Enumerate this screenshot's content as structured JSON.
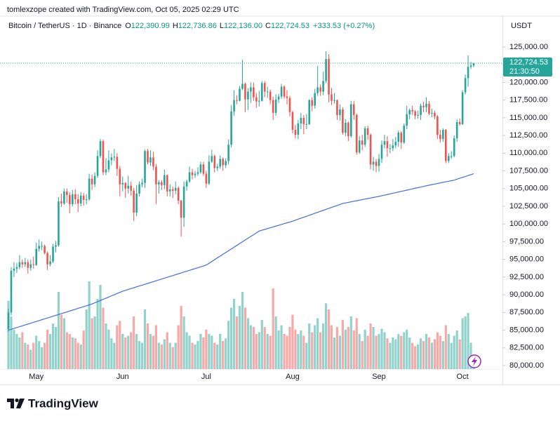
{
  "chart_data": {
    "type": "candlestick",
    "watermark": "tomlexzope created with TradingView.com, Oct 05, 2025 02:29 UTC",
    "symbol": "Bitcoin / TetherUS · 1D · Binance",
    "legend": {
      "o_key": "O",
      "o": "122,390.99",
      "h_key": "H",
      "h": "122,736.86",
      "l_key": "L",
      "l": "122,136.00",
      "c_key": "C",
      "c": "122,724.53",
      "change": "+333.53 (+0.27%)"
    },
    "currency": "USDT",
    "last_price_label": "122,724.53",
    "countdown": "21:30:50",
    "brand": "TradingView",
    "up_color": "#26a69a",
    "down_color": "#ef5350",
    "ma_color": "#3f6ee0",
    "grid": false,
    "ylim": [
      80000,
      125000
    ],
    "yticks": [
      {
        "value": 80000,
        "label": "80,000.00"
      },
      {
        "value": 82500,
        "label": "82,500.00"
      },
      {
        "value": 85000,
        "label": "85,000.00"
      },
      {
        "value": 87500,
        "label": "87,500.00"
      },
      {
        "value": 90000,
        "label": "90,000.00"
      },
      {
        "value": 92500,
        "label": "92,500.00"
      },
      {
        "value": 95000,
        "label": "95,000.00"
      },
      {
        "value": 97500,
        "label": "97,500.00"
      },
      {
        "value": 100000,
        "label": "100,000.00"
      },
      {
        "value": 102500,
        "label": "102,500.00"
      },
      {
        "value": 105000,
        "label": "105,000.00"
      },
      {
        "value": 107500,
        "label": "107,500.00"
      },
      {
        "value": 110000,
        "label": "110,000.00"
      },
      {
        "value": 112500,
        "label": "112,500.00"
      },
      {
        "value": 115000,
        "label": "115,000.00"
      },
      {
        "value": 117500,
        "label": "117,500.00"
      },
      {
        "value": 120000,
        "label": "120,000.00"
      },
      {
        "value": 122500,
        "label": "122,500.00"
      },
      {
        "value": 125000,
        "label": "125,000.00"
      }
    ],
    "categories": [
      null,
      null,
      null,
      null,
      null,
      null,
      null,
      null,
      null,
      null,
      "May",
      null,
      null,
      null,
      null,
      null,
      null,
      null,
      null,
      null,
      null,
      null,
      null,
      null,
      null,
      null,
      null,
      null,
      null,
      null,
      null,
      null,
      null,
      null,
      null,
      null,
      null,
      null,
      null,
      null,
      null,
      "Jun",
      null,
      null,
      null,
      null,
      null,
      null,
      null,
      null,
      null,
      null,
      null,
      null,
      null,
      null,
      null,
      null,
      null,
      null,
      null,
      null,
      null,
      null,
      null,
      null,
      null,
      null,
      null,
      null,
      null,
      "Jul",
      null,
      null,
      null,
      null,
      null,
      null,
      null,
      null,
      null,
      null,
      null,
      null,
      null,
      null,
      null,
      null,
      null,
      null,
      null,
      null,
      null,
      null,
      null,
      null,
      null,
      null,
      null,
      null,
      null,
      null,
      "Aug",
      null,
      null,
      null,
      null,
      null,
      null,
      null,
      null,
      null,
      null,
      null,
      null,
      null,
      null,
      null,
      null,
      null,
      null,
      null,
      null,
      null,
      null,
      null,
      null,
      null,
      null,
      null,
      null,
      null,
      null,
      "Sep",
      null,
      null,
      null,
      null,
      null,
      null,
      null,
      null,
      null,
      null,
      null,
      null,
      null,
      null,
      null,
      null,
      null,
      null,
      null,
      null,
      null,
      null,
      null,
      null,
      null,
      null,
      null,
      null,
      null,
      "Oct",
      null,
      null,
      null,
      null
    ],
    "open": [
      85200,
      87500,
      93400,
      93700,
      93900,
      94600,
      94300,
      94600,
      93800,
      94300,
      94200,
      96500,
      96900,
      96900,
      95900,
      94300,
      94700,
      96800,
      97000,
      103200,
      102900,
      104600,
      104100,
      102800,
      104200,
      103500,
      102900,
      104000,
      103400,
      103500,
      106400,
      105600,
      106800,
      109600,
      111700,
      107300,
      107700,
      109000,
      109400,
      109500,
      107800,
      105600,
      105800,
      105000,
      105400,
      104700,
      101600,
      104300,
      105600,
      105800,
      110300,
      108700,
      109400,
      108100,
      105600,
      105900,
      105500,
      106900,
      104600,
      104900,
      104700,
      105100,
      103300,
      100900,
      105300,
      106000,
      107300,
      106900,
      107100,
      107300,
      108400,
      107100,
      105700,
      108800,
      109600,
      107900,
      108100,
      109200,
      108300,
      108900,
      111200,
      115900,
      117500,
      117400,
      119100,
      119800,
      117600,
      118700,
      119300,
      117900,
      117300,
      117400,
      119900,
      118700,
      118700,
      117500,
      115700,
      117600,
      118000,
      119400,
      118000,
      117800,
      115800,
      113300,
      112600,
      114200,
      115000,
      114100,
      114100,
      117500,
      116700,
      118500,
      119300,
      118700,
      120200,
      123300,
      118300,
      117400,
      117500,
      115400,
      116200,
      112900,
      114300,
      112400,
      116900,
      115400,
      110100,
      111800,
      111200,
      113500,
      112600,
      108400,
      108800,
      108200,
      109200,
      111200,
      111700,
      110700,
      110700,
      111100,
      111600,
      112900,
      111500,
      113900,
      115500,
      116100,
      115900,
      115300,
      115400,
      116700,
      116500,
      117000,
      115600,
      115700,
      115200,
      112600,
      112000,
      113300,
      108900,
      109600,
      109600,
      112100,
      114400,
      114100,
      118600,
      120600,
      122200,
      122390.99
    ],
    "high": [
      88000,
      93900,
      94600,
      94500,
      95600,
      95000,
      95200,
      95000,
      95000,
      95400,
      97400,
      97800,
      97500,
      97100,
      96100,
      95600,
      97200,
      97600,
      103800,
      104300,
      105000,
      105000,
      104500,
      104800,
      104900,
      104200,
      104500,
      104400,
      104200,
      107100,
      107000,
      107300,
      110400,
      112000,
      111900,
      109300,
      110400,
      110000,
      110600,
      110000,
      108200,
      106700,
      105900,
      106800,
      106000,
      105100,
      105500,
      106000,
      106400,
      110500,
      110600,
      110400,
      110200,
      108500,
      106200,
      106200,
      107700,
      107000,
      105600,
      105300,
      106000,
      105300,
      103400,
      106000,
      106300,
      108100,
      107800,
      107500,
      108000,
      108800,
      108800,
      107500,
      109700,
      110500,
      109800,
      108500,
      109700,
      109400,
      109300,
      111900,
      116800,
      118900,
      118200,
      119500,
      123200,
      120000,
      119200,
      120000,
      120000,
      118500,
      118800,
      120200,
      120200,
      119400,
      119000,
      118000,
      118300,
      118400,
      119800,
      119600,
      118900,
      118100,
      116000,
      114000,
      114700,
      115700,
      115400,
      115500,
      117600,
      117900,
      119100,
      122300,
      119700,
      121500,
      124400,
      124000,
      119200,
      118500,
      117600,
      116900,
      116500,
      114800,
      114500,
      117400,
      117400,
      115600,
      112400,
      112600,
      113800,
      113900,
      112800,
      109500,
      109200,
      109900,
      111800,
      112600,
      112400,
      111300,
      112000,
      112300,
      113200,
      113100,
      114200,
      116700,
      116300,
      116700,
      116100,
      116000,
      117000,
      117300,
      117900,
      117400,
      116300,
      116000,
      115400,
      113300,
      113500,
      113400,
      110000,
      110300,
      112500,
      114800,
      114900,
      118900,
      121100,
      123800,
      122900,
      122736.86
    ],
    "low": [
      84800,
      87100,
      92500,
      93100,
      93600,
      93800,
      93900,
      93000,
      93400,
      93700,
      94100,
      96100,
      96300,
      95700,
      93500,
      94000,
      94500,
      96000,
      96800,
      102400,
      102700,
      103000,
      101500,
      102500,
      102800,
      101700,
      102500,
      102600,
      102800,
      103300,
      104800,
      105200,
      106500,
      109300,
      106900,
      106900,
      107300,
      108300,
      108900,
      106800,
      103900,
      104600,
      103700,
      104300,
      104000,
      100400,
      101100,
      103900,
      105200,
      105100,
      108400,
      108200,
      107600,
      102800,
      104300,
      104800,
      104900,
      103900,
      103900,
      103700,
      104200,
      102800,
      98200,
      99600,
      104700,
      105800,
      106300,
      106500,
      106800,
      107100,
      106800,
      105100,
      105500,
      108600,
      107300,
      107500,
      107800,
      107500,
      107900,
      108400,
      110800,
      115300,
      116900,
      117300,
      118900,
      115800,
      116100,
      117100,
      117400,
      116400,
      116600,
      117300,
      117900,
      117800,
      116900,
      114700,
      115300,
      117100,
      117700,
      117700,
      116900,
      115200,
      112800,
      112100,
      112000,
      113400,
      112700,
      113400,
      114000,
      115900,
      116300,
      118100,
      118100,
      118200,
      119900,
      117200,
      116800,
      117000,
      114700,
      114600,
      112600,
      112400,
      111700,
      112200,
      114700,
      109800,
      109900,
      110400,
      110900,
      111900,
      107700,
      107500,
      107300,
      107400,
      108600,
      110700,
      109500,
      110000,
      110300,
      110700,
      110900,
      110600,
      111300,
      113400,
      114800,
      115400,
      114800,
      114900,
      114700,
      115800,
      115800,
      115400,
      115100,
      114800,
      112000,
      111500,
      111600,
      108600,
      108600,
      109200,
      109400,
      111600,
      113900,
      114000,
      118300,
      119400,
      121900,
      122136.0
    ],
    "close": [
      87500,
      93400,
      93700,
      93900,
      94600,
      94300,
      94600,
      93800,
      94300,
      94200,
      96500,
      96900,
      96900,
      95900,
      94300,
      94700,
      96800,
      97000,
      103200,
      102900,
      104600,
      104100,
      102800,
      104200,
      103500,
      102900,
      104000,
      103400,
      103500,
      106400,
      105600,
      106800,
      109600,
      111700,
      107300,
      107700,
      109000,
      109400,
      109500,
      107800,
      105600,
      105800,
      105000,
      105400,
      104700,
      101600,
      104300,
      105600,
      105800,
      110300,
      108700,
      109400,
      108100,
      105600,
      105900,
      105500,
      106900,
      104600,
      104900,
      104700,
      105100,
      103300,
      100900,
      105300,
      106000,
      107300,
      106900,
      107100,
      107300,
      108400,
      107100,
      105700,
      108800,
      109600,
      107900,
      108100,
      109200,
      108300,
      108900,
      111200,
      115900,
      117500,
      117400,
      119100,
      119800,
      117600,
      118700,
      119300,
      117900,
      117300,
      117400,
      119900,
      118700,
      118700,
      117500,
      115700,
      117600,
      118000,
      119400,
      118000,
      117800,
      115800,
      113300,
      112600,
      114200,
      115000,
      114100,
      114100,
      117500,
      116700,
      118500,
      119300,
      118700,
      120200,
      123300,
      118300,
      117400,
      117500,
      115400,
      116200,
      112900,
      114300,
      112400,
      116900,
      115400,
      110100,
      111800,
      111200,
      113500,
      112600,
      108400,
      108800,
      108200,
      109200,
      111200,
      111700,
      110700,
      110700,
      111100,
      111600,
      112900,
      111500,
      113900,
      115500,
      116100,
      115900,
      115300,
      115400,
      116700,
      116500,
      117000,
      115600,
      115700,
      115200,
      112600,
      112000,
      113300,
      108900,
      109600,
      109600,
      112100,
      114400,
      114100,
      118600,
      120600,
      122200,
      122390.99,
      122724.53
    ],
    "volume_lim": [
      0,
      100
    ],
    "volume": [
      78,
      60,
      45,
      40,
      36,
      42,
      30,
      28,
      22,
      30,
      38,
      32,
      25,
      30,
      45,
      40,
      52,
      48,
      88,
      62,
      58,
      42,
      40,
      36,
      35,
      30,
      28,
      44,
      68,
      100,
      58,
      60,
      80,
      96,
      70,
      52,
      45,
      35,
      30,
      50,
      55,
      40,
      36,
      38,
      42,
      60,
      40,
      32,
      30,
      68,
      52,
      40,
      38,
      50,
      30,
      28,
      34,
      42,
      30,
      25,
      30,
      50,
      72,
      60,
      42,
      38,
      30,
      28,
      32,
      40,
      36,
      45,
      40,
      38,
      30,
      28,
      40,
      32,
      35,
      55,
      70,
      80,
      60,
      72,
      88,
      70,
      58,
      50,
      48,
      40,
      42,
      56,
      48,
      40,
      38,
      92,
      60,
      44,
      50,
      40,
      38,
      48,
      62,
      45,
      40,
      44,
      38,
      30,
      52,
      42,
      50,
      58,
      42,
      52,
      75,
      68,
      50,
      36,
      48,
      38,
      56,
      45,
      48,
      60,
      44,
      58,
      40,
      32,
      45,
      38,
      52,
      48,
      38,
      40,
      46,
      42,
      35,
      30,
      36,
      34,
      40,
      38,
      42,
      45,
      36,
      30,
      26,
      28,
      35,
      32,
      40,
      36,
      30,
      34,
      42,
      38,
      32,
      50,
      40,
      30,
      38,
      44,
      34,
      58,
      60,
      64,
      30,
      12
    ],
    "ma": [
      85000,
      85120,
      85250,
      85370,
      85490,
      85620,
      85740,
      85860,
      85980,
      86110,
      86230,
      86350,
      86480,
      86600,
      86720,
      86850,
      86970,
      87090,
      87210,
      87340,
      87460,
      87580,
      87710,
      87830,
      87950,
      88080,
      88200,
      88320,
      88440,
      88570,
      88700,
      88860,
      89030,
      89190,
      89360,
      89520,
      89680,
      89850,
      90010,
      90180,
      90340,
      90500,
      90620,
      90750,
      90870,
      90990,
      91120,
      91240,
      91360,
      91480,
      91610,
      91730,
      91850,
      91980,
      92100,
      92220,
      92350,
      92470,
      92590,
      92710,
      92840,
      92960,
      93080,
      93210,
      93330,
      93450,
      93580,
      93700,
      93820,
      93950,
      94070,
      94200,
      94450,
      94710,
      94960,
      95210,
      95460,
      95720,
      95970,
      96220,
      96470,
      96730,
      96980,
      97230,
      97480,
      97740,
      97990,
      98240,
      98490,
      98750,
      99000,
      99120,
      99230,
      99350,
      99470,
      99580,
      99700,
      99820,
      99930,
      100050,
      100170,
      100280,
      100400,
      100540,
      100680,
      100820,
      100960,
      101090,
      101230,
      101370,
      101510,
      101650,
      101790,
      101930,
      102070,
      102210,
      102340,
      102480,
      102620,
      102760,
      102900,
      102980,
      103050,
      103130,
      103210,
      103280,
      103360,
      103440,
      103520,
      103590,
      103670,
      103750,
      103820,
      103900,
      103990,
      104080,
      104160,
      104250,
      104340,
      104430,
      104520,
      104610,
      104690,
      104780,
      104870,
      104960,
      105050,
      105140,
      105220,
      105310,
      105400,
      105480,
      105560,
      105640,
      105720,
      105800,
      105880,
      105960,
      106040,
      106120,
      106200,
      106330,
      106460,
      106590,
      106710,
      106840,
      106970,
      107100
    ]
  }
}
